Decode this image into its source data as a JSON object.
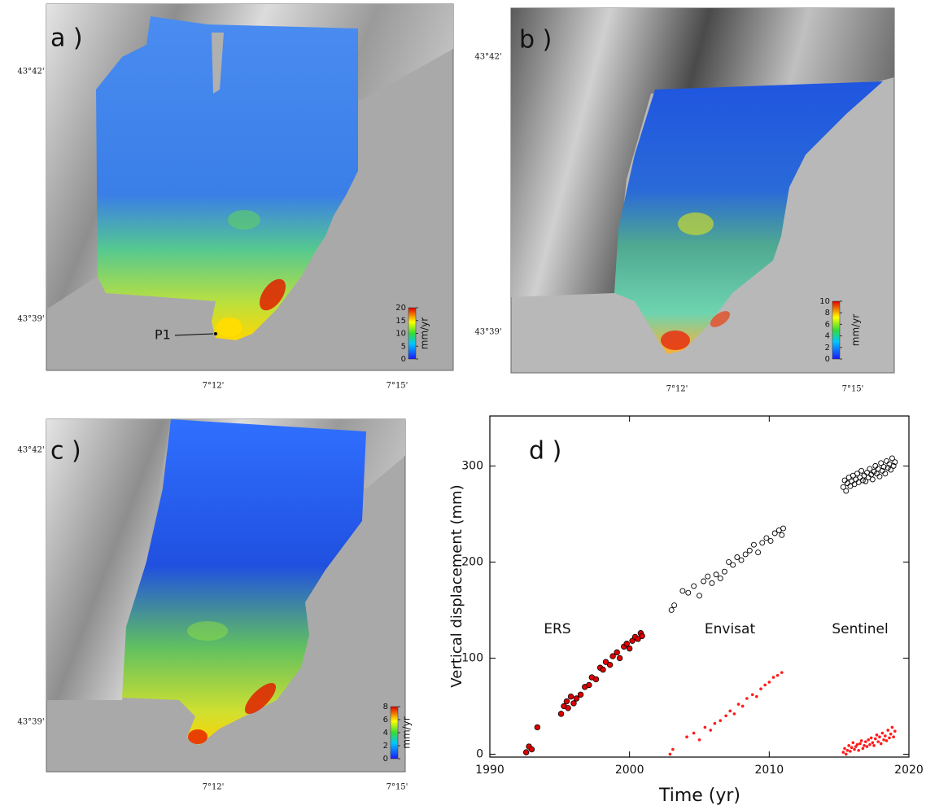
{
  "maps": [
    {
      "label": "a )",
      "lat_labels": [
        "43°42'",
        "43°39'"
      ],
      "lon_labels": [
        "7°12'",
        "7°15'"
      ],
      "point_label": "P1",
      "colorbar": {
        "label": "mm/yr",
        "lim": [
          0,
          20
        ],
        "ticks": [
          0,
          5,
          10,
          15,
          20
        ]
      }
    },
    {
      "label": "b )",
      "lat_labels": [
        "43°42'",
        "43°39'"
      ],
      "lon_labels": [
        "7°12'",
        "7°15'"
      ],
      "colorbar": {
        "label": "mm/yr",
        "lim": [
          0,
          10
        ],
        "ticks": [
          0,
          2,
          4,
          6,
          8,
          10
        ]
      }
    },
    {
      "label": "c )",
      "lat_labels": [
        "43°42'",
        "43°39'"
      ],
      "lon_labels": [
        "7°12'",
        "7°15'"
      ],
      "colorbar": {
        "label": "mm/yr",
        "lim": [
          0,
          8
        ],
        "ticks": [
          0,
          2,
          4,
          6,
          8
        ]
      }
    }
  ],
  "chart_data": {
    "type": "scatter",
    "title": "d )",
    "x_label": "Time (yr)",
    "y_label": "Vertical displacement (mm)",
    "annotations": [
      "ERS",
      "Envisat",
      "Sentinel"
    ],
    "xlim": [
      1990,
      2020
    ],
    "xticks": [
      1990,
      2000,
      2010,
      2020
    ],
    "ylim": [
      -3,
      352
    ],
    "yticks": [
      0,
      100,
      200,
      300
    ],
    "series": [
      {
        "marker": "filled",
        "color": "#e00000",
        "edgecolor": "#000000",
        "x": [
          1992.6,
          1992.8,
          1993.0,
          1993.4,
          1995.1,
          1995.3,
          1995.5,
          1995.6,
          1995.8,
          1996.0,
          1996.2,
          1996.5,
          1996.8,
          1997.1,
          1997.3,
          1997.6,
          1997.9,
          1998.1,
          1998.3,
          1998.6,
          1998.8,
          1999.1,
          1999.3,
          1999.6,
          1999.8,
          2000.0,
          2000.2,
          2000.4,
          2000.6,
          2000.8,
          2000.9
        ],
        "values": [
          2,
          8,
          5,
          28,
          42,
          50,
          55,
          48,
          60,
          53,
          58,
          62,
          70,
          72,
          80,
          78,
          90,
          88,
          96,
          93,
          102,
          106,
          100,
          112,
          115,
          110,
          118,
          122,
          120,
          126,
          123
        ]
      },
      {
        "marker": "open",
        "color": "#000000",
        "x": [
          2003.0,
          2003.2,
          2003.8,
          2004.2,
          2004.6,
          2005.0,
          2005.3,
          2005.6,
          2005.9,
          2006.2,
          2006.5,
          2006.8,
          2007.1,
          2007.4,
          2007.7,
          2008.0,
          2008.3,
          2008.6,
          2008.9,
          2009.2,
          2009.5,
          2009.8,
          2010.1,
          2010.4,
          2010.7,
          2010.9,
          2011.0
        ],
        "values": [
          150,
          155,
          170,
          168,
          175,
          165,
          180,
          185,
          178,
          187,
          183,
          190,
          200,
          197,
          205,
          202,
          208,
          212,
          218,
          210,
          220,
          225,
          222,
          230,
          233,
          228,
          235
        ]
      },
      {
        "marker": "dot",
        "color": "#ff1a1a",
        "x": [
          2002.9,
          2003.1,
          2004.1,
          2004.6,
          2005.0,
          2005.4,
          2005.8,
          2006.1,
          2006.5,
          2006.9,
          2007.2,
          2007.5,
          2007.8,
          2008.1,
          2008.4,
          2008.8,
          2009.1,
          2009.4,
          2009.7,
          2010.0,
          2010.3,
          2010.6,
          2010.9
        ],
        "values": [
          0,
          5,
          18,
          22,
          15,
          28,
          25,
          32,
          35,
          40,
          45,
          42,
          52,
          50,
          58,
          62,
          60,
          68,
          72,
          75,
          80,
          82,
          85
        ]
      },
      {
        "marker": "open",
        "color": "#000000",
        "x": [
          2015.3,
          2015.4,
          2015.5,
          2015.6,
          2015.7,
          2015.8,
          2015.9,
          2016.0,
          2016.1,
          2016.2,
          2016.3,
          2016.4,
          2016.5,
          2016.6,
          2016.7,
          2016.8,
          2016.9,
          2017.0,
          2017.1,
          2017.2,
          2017.3,
          2017.4,
          2017.5,
          2017.6,
          2017.7,
          2017.8,
          2017.9,
          2018.0,
          2018.1,
          2018.2,
          2018.3,
          2018.4,
          2018.5,
          2018.6,
          2018.7,
          2018.8,
          2018.9,
          2019.0
        ],
        "values": [
          278,
          285,
          274,
          282,
          288,
          279,
          284,
          290,
          281,
          286,
          292,
          283,
          288,
          295,
          285,
          290,
          284,
          293,
          288,
          297,
          291,
          286,
          294,
          300,
          292,
          297,
          289,
          303,
          295,
          299,
          292,
          305,
          298,
          302,
          296,
          308,
          300,
          304
        ]
      },
      {
        "marker": "dot",
        "color": "#ff1a1a",
        "x": [
          2015.3,
          2015.4,
          2015.5,
          2015.6,
          2015.7,
          2015.8,
          2015.9,
          2016.0,
          2016.1,
          2016.2,
          2016.3,
          2016.4,
          2016.5,
          2016.6,
          2016.7,
          2016.8,
          2016.9,
          2017.0,
          2017.1,
          2017.2,
          2017.3,
          2017.4,
          2017.5,
          2017.6,
          2017.7,
          2017.8,
          2017.9,
          2018.0,
          2018.1,
          2018.2,
          2018.3,
          2018.4,
          2018.5,
          2018.6,
          2018.7,
          2018.8,
          2018.9,
          2019.0
        ],
        "values": [
          2,
          6,
          0,
          4,
          9,
          3,
          7,
          12,
          5,
          8,
          10,
          4,
          11,
          14,
          6,
          9,
          13,
          8,
          15,
          10,
          17,
          12,
          9,
          16,
          20,
          13,
          18,
          11,
          22,
          15,
          19,
          14,
          25,
          17,
          21,
          28,
          18,
          24
        ]
      }
    ]
  }
}
